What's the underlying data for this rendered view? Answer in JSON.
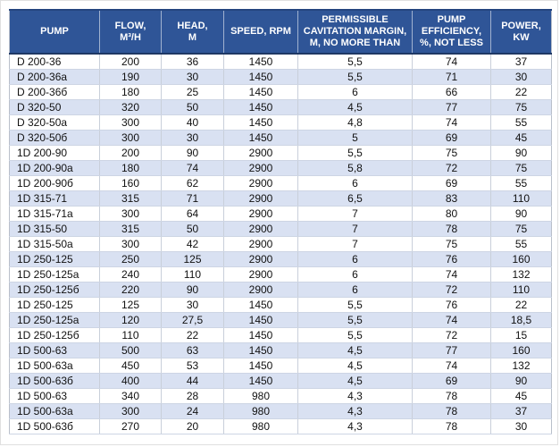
{
  "table": {
    "columns": [
      {
        "label": "PUMP"
      },
      {
        "label": "FLOW,\nM³/H"
      },
      {
        "label": "HEAD,\nM"
      },
      {
        "label": "SPEED, RPM"
      },
      {
        "label": "PERMISSIBLE\nCAVITATION MARGIN,\nM, NO MORE THAN"
      },
      {
        "label": "PUMP\nEFFICIENCY,\n%, NOT LESS"
      },
      {
        "label": "POWER,\nKW"
      }
    ],
    "rows": [
      [
        "D 200-36",
        "200",
        "36",
        "1450",
        "5,5",
        "74",
        "37"
      ],
      [
        "D 200-36a",
        "190",
        "30",
        "1450",
        "5,5",
        "71",
        "30"
      ],
      [
        "D 200-36б",
        "180",
        "25",
        "1450",
        "6",
        "66",
        "22"
      ],
      [
        "D 320-50",
        "320",
        "50",
        "1450",
        "4,5",
        "77",
        "75"
      ],
      [
        "D 320-50a",
        "300",
        "40",
        "1450",
        "4,8",
        "74",
        "55"
      ],
      [
        "D 320-50б",
        "300",
        "30",
        "1450",
        "5",
        "69",
        "45"
      ],
      [
        "1D 200-90",
        "200",
        "90",
        "2900",
        "5,5",
        "75",
        "90"
      ],
      [
        "1D 200-90a",
        "180",
        "74",
        "2900",
        "5,8",
        "72",
        "75"
      ],
      [
        "1D 200-90б",
        "160",
        "62",
        "2900",
        "6",
        "69",
        "55"
      ],
      [
        "1D 315-71",
        "315",
        "71",
        "2900",
        "6,5",
        "83",
        "110"
      ],
      [
        "1D 315-71a",
        "300",
        "64",
        "2900",
        "7",
        "80",
        "90"
      ],
      [
        "1D 315-50",
        "315",
        "50",
        "2900",
        "7",
        "78",
        "75"
      ],
      [
        "1D 315-50a",
        "300",
        "42",
        "2900",
        "7",
        "75",
        "55"
      ],
      [
        "1D 250-125",
        "250",
        "125",
        "2900",
        "6",
        "76",
        "160"
      ],
      [
        "1D 250-125a",
        "240",
        "110",
        "2900",
        "6",
        "74",
        "132"
      ],
      [
        "1D 250-125б",
        "220",
        "90",
        "2900",
        "6",
        "72",
        "110"
      ],
      [
        "1D 250-125",
        "125",
        "30",
        "1450",
        "5,5",
        "76",
        "22"
      ],
      [
        "1D 250-125a",
        "120",
        "27,5",
        "1450",
        "5,5",
        "74",
        "18,5"
      ],
      [
        "1D 250-125б",
        "110",
        "22",
        "1450",
        "5,5",
        "72",
        "15"
      ],
      [
        "1D 500-63",
        "500",
        "63",
        "1450",
        "4,5",
        "77",
        "160"
      ],
      [
        "1D 500-63a",
        "450",
        "53",
        "1450",
        "4,5",
        "74",
        "132"
      ],
      [
        "1D 500-63б",
        "400",
        "44",
        "1450",
        "4,5",
        "69",
        "90"
      ],
      [
        "1D 500-63",
        "340",
        "28",
        "980",
        "4,3",
        "78",
        "45"
      ],
      [
        "1D 500-63a",
        "300",
        "24",
        "980",
        "4,3",
        "78",
        "37"
      ],
      [
        "1D 500-63б",
        "270",
        "20",
        "980",
        "4,3",
        "78",
        "30"
      ]
    ]
  },
  "colors": {
    "header_bg": "#2f5597",
    "header_text": "#ffffff",
    "header_edge": "#1f3864",
    "band_bg": "#d9e1f2",
    "grid_line": "#c9cfda"
  }
}
